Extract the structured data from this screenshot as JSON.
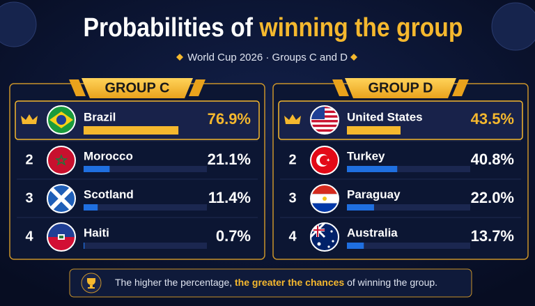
{
  "title": {
    "main": "Probabilities of",
    "highlight": "winning the group"
  },
  "subtitle": "World Cup 2026 · Groups C and D",
  "footer": {
    "start": "The higher the percentage,",
    "highlight": "the greater the chances",
    "end": "of winning the group."
  },
  "chart_data": [
    {
      "type": "bar",
      "title": "GROUP C",
      "categories": [
        "Brazil",
        "Morocco",
        "Scotland",
        "Haiti"
      ],
      "ranks": [
        null,
        2,
        3,
        4
      ],
      "values": [
        76.9,
        21.1,
        11.4,
        0.7
      ],
      "value_labels": [
        "76.9%",
        "21.1%",
        "11.4%",
        "0.7%"
      ],
      "xlim": [
        0,
        100
      ],
      "color": "#1f6fe0",
      "highlight_color": "#f5b82e"
    },
    {
      "type": "bar",
      "title": "GROUP D",
      "categories": [
        "United States",
        "Turkey",
        "Paraguay",
        "Australia"
      ],
      "ranks": [
        null,
        2,
        3,
        4
      ],
      "values": [
        43.5,
        40.8,
        22.0,
        13.7
      ],
      "value_labels": [
        "43.5%",
        "40.8%",
        "22.0%",
        "13.7%"
      ],
      "xlim": [
        0,
        100
      ],
      "color": "#1f6fe0",
      "highlight_color": "#f5b82e"
    }
  ]
}
